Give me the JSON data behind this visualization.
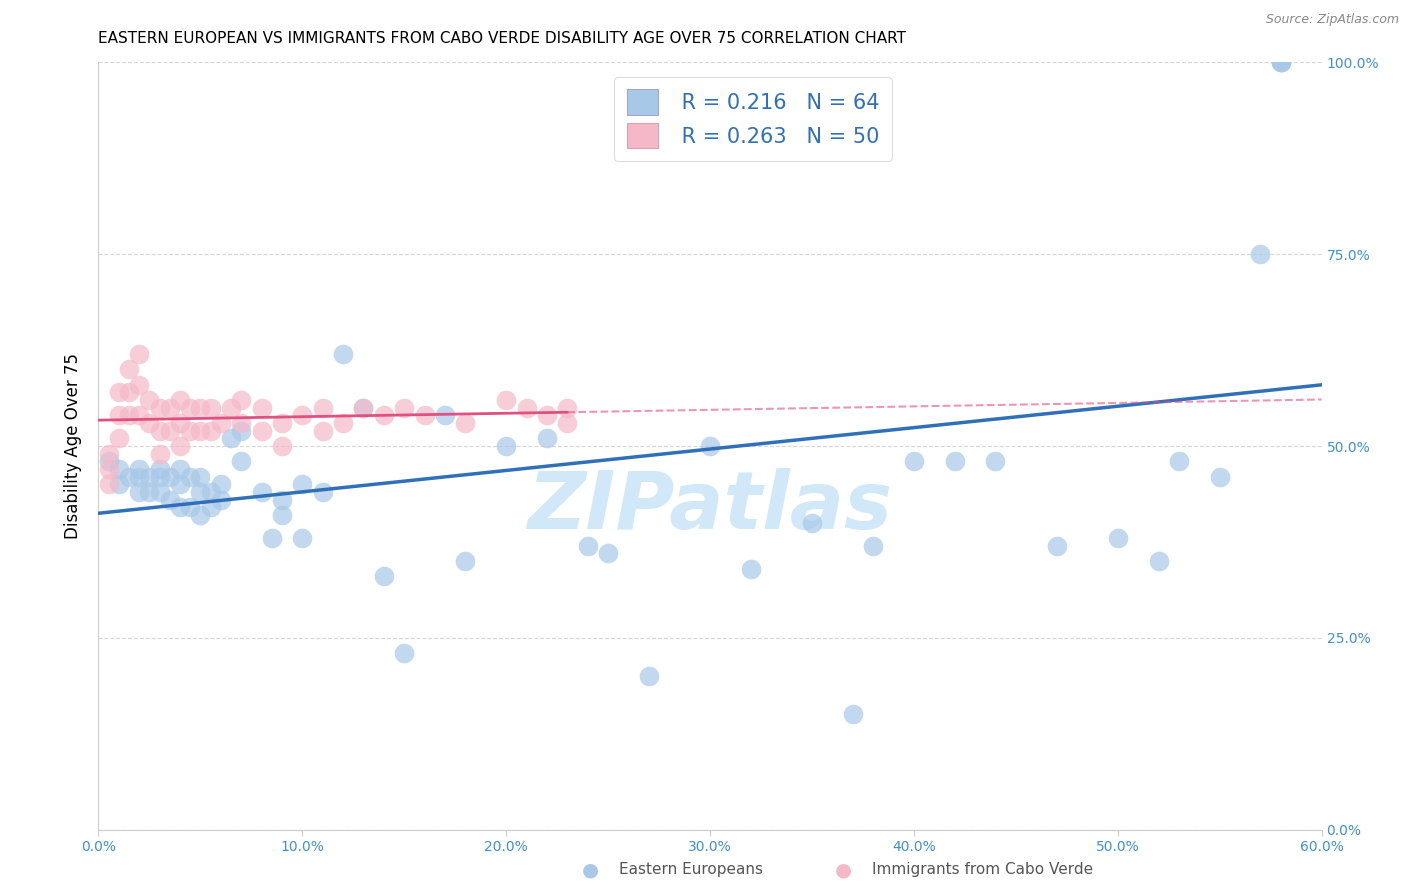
{
  "title": "EASTERN EUROPEAN VS IMMIGRANTS FROM CABO VERDE DISABILITY AGE OVER 75 CORRELATION CHART",
  "source": "Source: ZipAtlas.com",
  "ylabel": "Disability Age Over 75",
  "xlabel_ticks": [
    "0.0%",
    "10.0%",
    "20.0%",
    "30.0%",
    "40.0%",
    "50.0%",
    "60.0%"
  ],
  "ylabel_ticks": [
    "0.0%",
    "25.0%",
    "50.0%",
    "75.0%",
    "100.0%"
  ],
  "xlim": [
    0.0,
    0.6
  ],
  "ylim": [
    0.0,
    1.0
  ],
  "legend_label1": "Eastern Europeans",
  "legend_label2": "Immigrants from Cabo Verde",
  "R1": "0.216",
  "N1": "64",
  "R2": "0.263",
  "N2": "50",
  "color_blue": "#a8c8e8",
  "color_pink": "#f4b8c8",
  "color_line_blue": "#3070b8",
  "color_line_pink": "#e05080",
  "watermark_color": "#d0e8f8",
  "blue_x": [
    0.005,
    0.01,
    0.01,
    0.015,
    0.02,
    0.02,
    0.02,
    0.025,
    0.025,
    0.03,
    0.03,
    0.03,
    0.035,
    0.035,
    0.04,
    0.04,
    0.04,
    0.045,
    0.045,
    0.05,
    0.05,
    0.05,
    0.055,
    0.055,
    0.06,
    0.06,
    0.065,
    0.07,
    0.07,
    0.08,
    0.085,
    0.09,
    0.09,
    0.1,
    0.1,
    0.11,
    0.12,
    0.13,
    0.14,
    0.15,
    0.17,
    0.18,
    0.2,
    0.22,
    0.24,
    0.25,
    0.27,
    0.3,
    0.32,
    0.35,
    0.37,
    0.38,
    0.4,
    0.42,
    0.44,
    0.47,
    0.5,
    0.52,
    0.53,
    0.55,
    0.57,
    0.58,
    0.58,
    0.58
  ],
  "blue_y": [
    0.48,
    0.47,
    0.45,
    0.46,
    0.47,
    0.46,
    0.44,
    0.46,
    0.44,
    0.47,
    0.46,
    0.44,
    0.46,
    0.43,
    0.47,
    0.45,
    0.42,
    0.46,
    0.42,
    0.46,
    0.44,
    0.41,
    0.44,
    0.42,
    0.45,
    0.43,
    0.51,
    0.52,
    0.48,
    0.44,
    0.38,
    0.43,
    0.41,
    0.45,
    0.38,
    0.44,
    0.62,
    0.55,
    0.33,
    0.23,
    0.54,
    0.35,
    0.5,
    0.51,
    0.37,
    0.36,
    0.2,
    0.5,
    0.34,
    0.4,
    0.15,
    0.37,
    0.48,
    0.48,
    0.48,
    0.37,
    0.38,
    0.35,
    0.48,
    0.46,
    0.75,
    1.0,
    1.0,
    1.0
  ],
  "pink_x": [
    0.005,
    0.005,
    0.005,
    0.01,
    0.01,
    0.01,
    0.015,
    0.015,
    0.015,
    0.02,
    0.02,
    0.02,
    0.025,
    0.025,
    0.03,
    0.03,
    0.03,
    0.035,
    0.035,
    0.04,
    0.04,
    0.04,
    0.045,
    0.045,
    0.05,
    0.05,
    0.055,
    0.055,
    0.06,
    0.065,
    0.07,
    0.07,
    0.08,
    0.08,
    0.09,
    0.09,
    0.1,
    0.11,
    0.11,
    0.12,
    0.13,
    0.14,
    0.15,
    0.16,
    0.18,
    0.2,
    0.21,
    0.22,
    0.23,
    0.23
  ],
  "pink_y": [
    0.49,
    0.47,
    0.45,
    0.57,
    0.54,
    0.51,
    0.6,
    0.57,
    0.54,
    0.62,
    0.58,
    0.54,
    0.56,
    0.53,
    0.55,
    0.52,
    0.49,
    0.55,
    0.52,
    0.56,
    0.53,
    0.5,
    0.55,
    0.52,
    0.55,
    0.52,
    0.55,
    0.52,
    0.53,
    0.55,
    0.56,
    0.53,
    0.55,
    0.52,
    0.53,
    0.5,
    0.54,
    0.55,
    0.52,
    0.53,
    0.55,
    0.54,
    0.55,
    0.54,
    0.53,
    0.56,
    0.55,
    0.54,
    0.53,
    0.55
  ],
  "title_fontsize": 11,
  "axis_tick_fontsize": 10
}
